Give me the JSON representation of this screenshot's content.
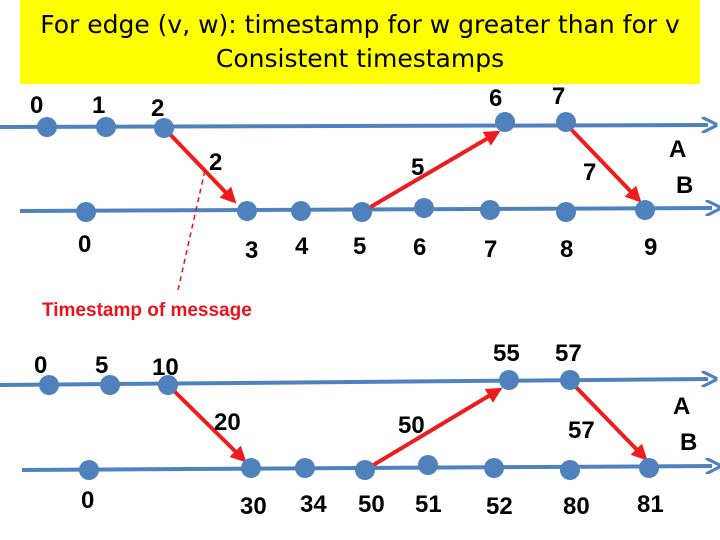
{
  "banner": {
    "line1": "For edge (v, w): timestamp for w greater than for v",
    "line2": "Consistent timestamps"
  },
  "colors": {
    "banner_bg": "#ffff00",
    "timeline": "#4f81bd",
    "event": "#4f81bd",
    "message": "#ee1c1c",
    "note": "#e8141b"
  },
  "annotation": "Timestamp of message",
  "panels": [
    {
      "process_labels": {
        "a": "A",
        "b": "B"
      },
      "a_events": [
        "0",
        "1",
        "2",
        "6",
        "7"
      ],
      "b_events": [
        "0",
        "3",
        "4",
        "5",
        "6",
        "7",
        "8",
        "9"
      ],
      "messages": [
        {
          "label": "2",
          "from": "A:2",
          "to": "B:3"
        },
        {
          "label": "5",
          "from": "B:5",
          "to": "A:6"
        },
        {
          "label": "7",
          "from": "A:7",
          "to": "B:9"
        }
      ]
    },
    {
      "process_labels": {
        "a": "A",
        "b": "B"
      },
      "a_events": [
        "0",
        "5",
        "10",
        "55",
        "57"
      ],
      "b_events": [
        "0",
        "30",
        "34",
        "50",
        "51",
        "52",
        "80",
        "81"
      ],
      "messages": [
        {
          "label": "20",
          "from": "A:10",
          "to": "B:30"
        },
        {
          "label": "50",
          "from": "B:50",
          "to": "A:55"
        },
        {
          "label": "57",
          "from": "A:57",
          "to": "B:81"
        }
      ]
    }
  ]
}
